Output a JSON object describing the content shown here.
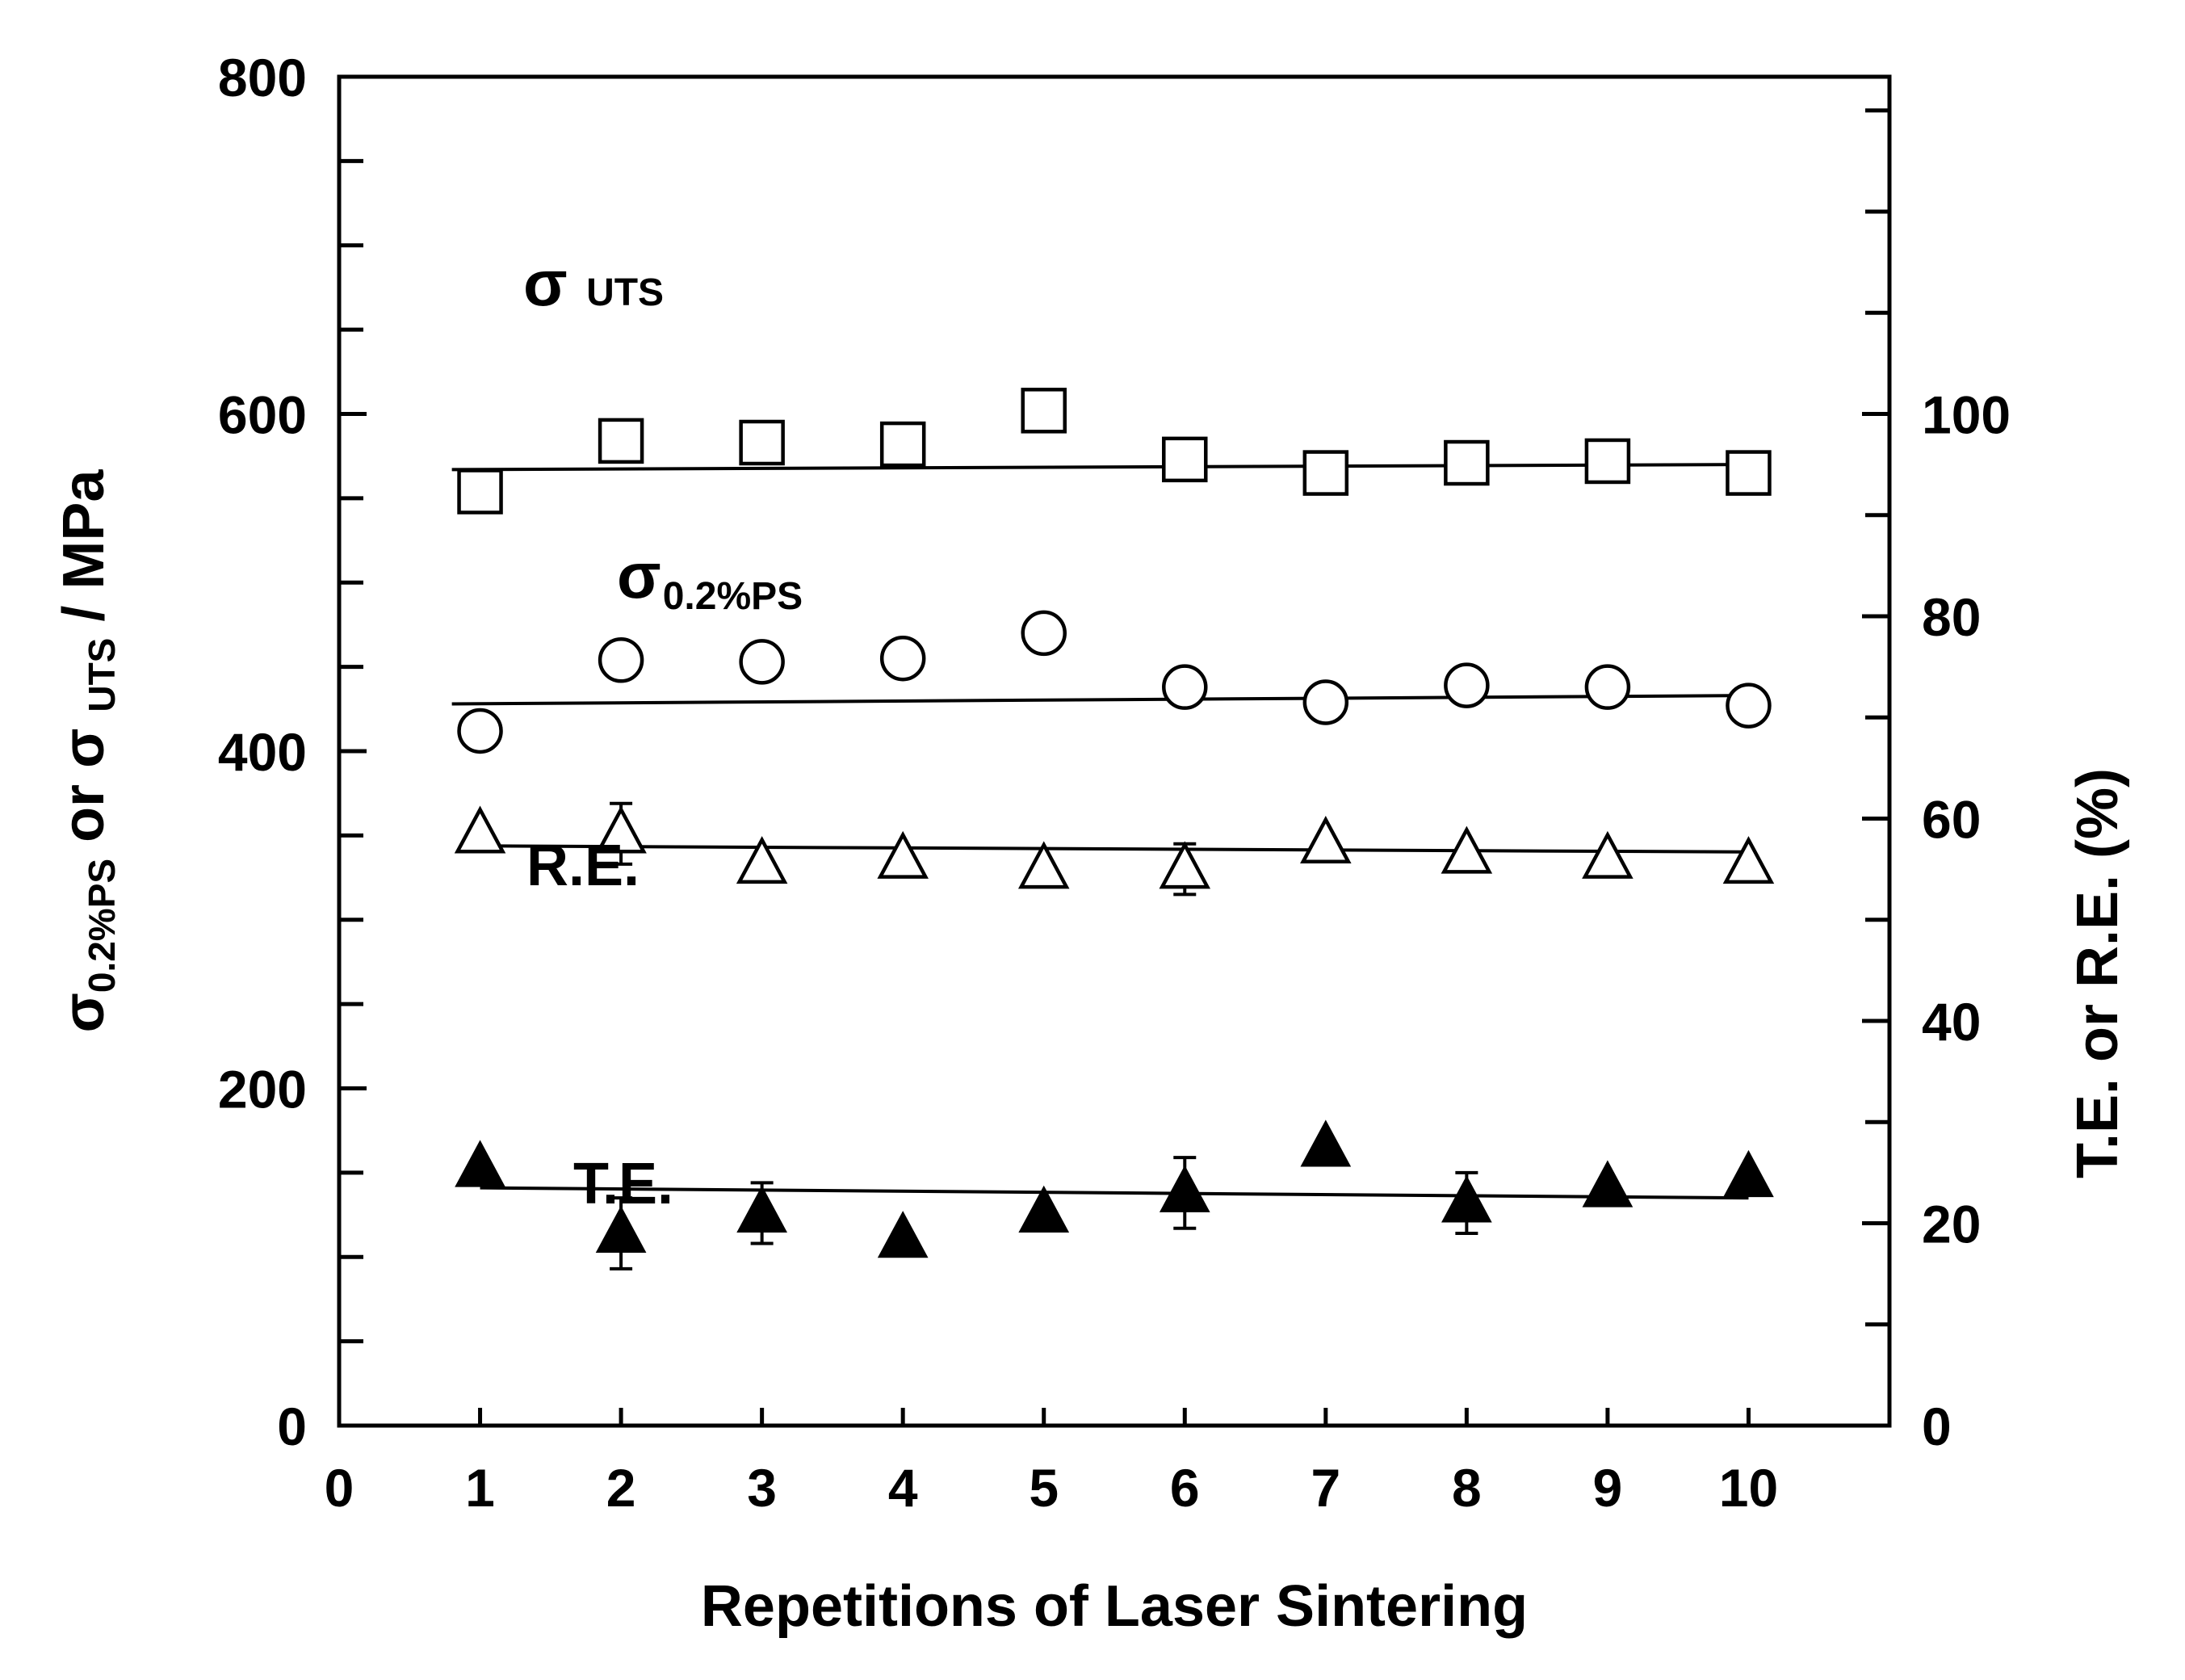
{
  "chart_data": {
    "type": "scatter",
    "title": "",
    "xlabel": "Repetitions of Laser Sintering",
    "ylabel_left": {
      "sym1": "σ",
      "sub1": "0.2%PS",
      "mid": " or σ ",
      "sub2": "UTS",
      "tail": " / MPa"
    },
    "ylabel_right": "T.E. or R.E.  (%)",
    "xlim": [
      0,
      11
    ],
    "ylim_left": [
      0,
      800
    ],
    "ylim_right": [
      0,
      133.33
    ],
    "x_ticks": [
      0,
      1,
      2,
      3,
      4,
      5,
      6,
      7,
      8,
      9,
      10
    ],
    "y_left_ticks": [
      0,
      200,
      400,
      600,
      800
    ],
    "y_right_ticks": [
      0,
      20,
      40,
      60,
      80,
      100
    ],
    "grid": false,
    "series": [
      {
        "key": "uts",
        "label": {
          "sym": "σ",
          "sub": " UTS"
        },
        "axis": "left",
        "marker": "square-open",
        "x": [
          1,
          2,
          3,
          4,
          5,
          6,
          7,
          8,
          9,
          10
        ],
        "y": [
          554,
          584,
          583,
          582,
          602,
          573,
          565,
          571,
          572,
          565
        ],
        "fit": {
          "x": [
            0.8,
            10
          ],
          "y": [
            567,
            570
          ]
        }
      },
      {
        "key": "ps",
        "label": {
          "sym": "σ",
          "sub": "0.2%PS"
        },
        "axis": "left",
        "marker": "circle-open",
        "x": [
          1,
          2,
          3,
          4,
          5,
          6,
          7,
          8,
          9,
          10
        ],
        "y": [
          412,
          454,
          453,
          455,
          470,
          438,
          429,
          439,
          438,
          427
        ],
        "fit": {
          "x": [
            0.8,
            10
          ],
          "y": [
            428,
            433
          ]
        }
      },
      {
        "key": "re",
        "label": {
          "sym": "R.E.",
          "sub": ""
        },
        "axis": "right",
        "marker": "triangle-open",
        "x": [
          1,
          2,
          3,
          4,
          5,
          6,
          7,
          8,
          9,
          10
        ],
        "y": [
          58.5,
          58.5,
          55.5,
          56.0,
          55.0,
          55.0,
          57.5,
          56.5,
          56.0,
          55.5
        ],
        "err": [
          0,
          3.0,
          0,
          0,
          0,
          2.5,
          0,
          0,
          0,
          0
        ],
        "fit": {
          "x": [
            1,
            10
          ],
          "y": [
            57.3,
            56.7
          ]
        }
      },
      {
        "key": "te",
        "label": {
          "sym": "T.E.",
          "sub": ""
        },
        "axis": "right",
        "marker": "triangle-filled",
        "x": [
          1,
          2,
          3,
          4,
          5,
          6,
          7,
          8,
          9,
          10
        ],
        "y": [
          25.5,
          19.0,
          21.0,
          18.5,
          21.0,
          23.0,
          27.5,
          22.0,
          23.5,
          24.5
        ],
        "err": [
          0,
          3.5,
          3.0,
          0,
          0,
          3.5,
          0,
          3.0,
          0,
          0
        ],
        "fit": {
          "x": [
            1,
            10
          ],
          "y": [
            23.5,
            22.5
          ]
        }
      }
    ]
  }
}
